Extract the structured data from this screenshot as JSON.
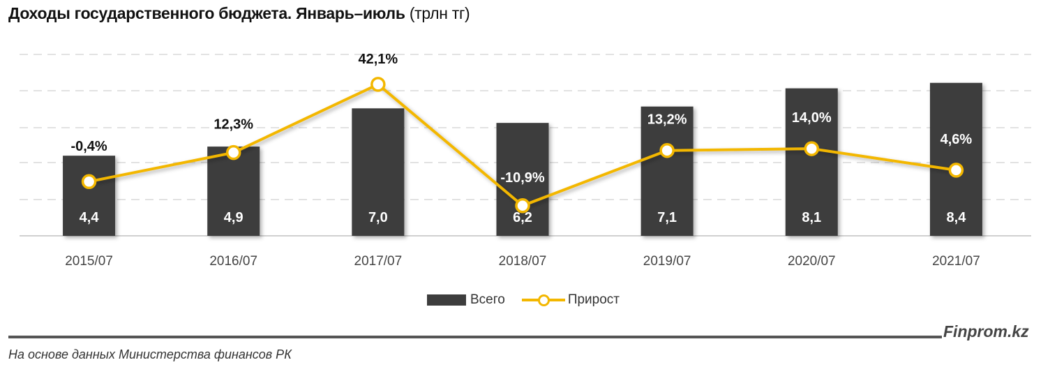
{
  "title": {
    "main": "Доходы государственного бюджета. Январь–июль",
    "unit": "(трлн тг)"
  },
  "legend": {
    "bar_label": "Всего",
    "line_label": "Прирост"
  },
  "footer": {
    "brand": "Finprom.kz",
    "source": "На основе данных Министерства финансов РК"
  },
  "colors": {
    "bar": "#3d3d3d",
    "line": "#f3b700",
    "grid": "#d9d9d9",
    "marker_fill": "#ffffff"
  },
  "chart_data": {
    "type": "bar+line",
    "title": "Доходы государственного бюджета. Январь–июль (трлн тг)",
    "categories": [
      "2015/07",
      "2016/07",
      "2017/07",
      "2018/07",
      "2019/07",
      "2020/07",
      "2021/07"
    ],
    "series": [
      {
        "name": "Всего",
        "type": "bar",
        "values": [
          4.4,
          4.9,
          7.0,
          6.2,
          7.1,
          8.1,
          8.4
        ],
        "labels": [
          "4,4",
          "4,9",
          "7,0",
          "6,2",
          "7,1",
          "8,1",
          "8,4"
        ]
      },
      {
        "name": "Прирост",
        "type": "line",
        "axis": "secondary",
        "values": [
          -0.4,
          12.3,
          42.1,
          -10.9,
          13.2,
          14.0,
          4.6
        ],
        "labels": [
          "-0,4%",
          "12,3%",
          "42,1%",
          "-10,9%",
          "13,2%",
          "14,0%",
          "4,6%"
        ]
      }
    ],
    "xlabel": "",
    "ylabel": "",
    "grid": true,
    "gridlines": 5,
    "legend_position": "bottom"
  }
}
